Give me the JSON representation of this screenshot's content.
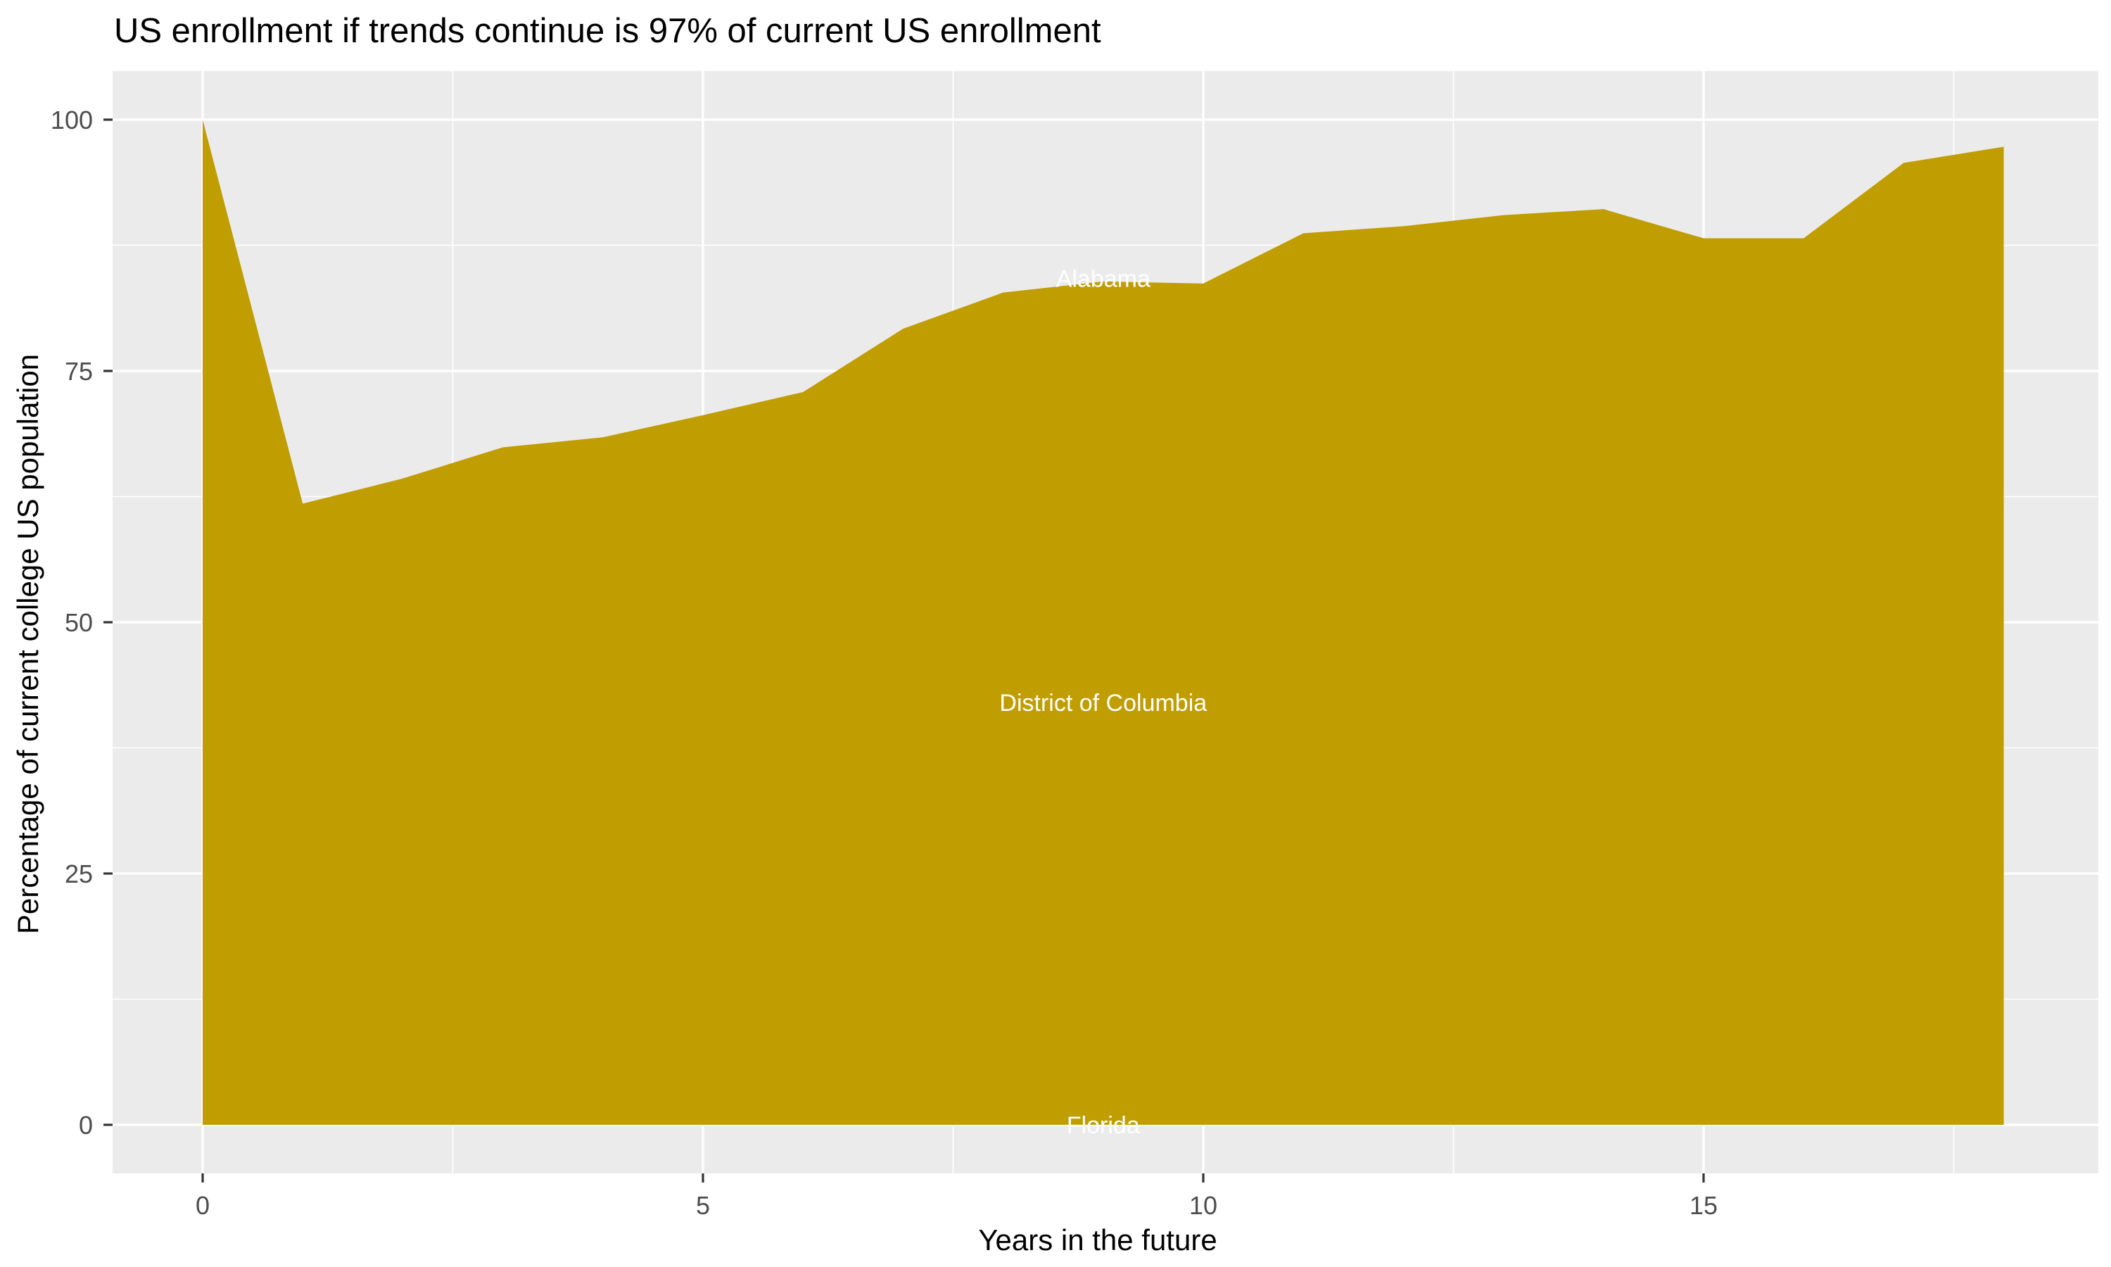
{
  "chart_data": {
    "type": "area",
    "title": "US enrollment if trends continue is 97% of current US enrollment",
    "xlabel": "Years in the future",
    "ylabel": "Percentage of current college US population",
    "x": [
      0,
      1,
      2,
      3,
      4,
      5,
      6,
      7,
      8,
      9,
      10,
      11,
      12,
      13,
      14,
      15,
      16,
      17,
      18
    ],
    "values": [
      100,
      61.8,
      64.3,
      67.4,
      68.4,
      70.6,
      72.9,
      79.2,
      82.8,
      83.9,
      83.7,
      88.7,
      89.4,
      90.5,
      91.1,
      88.2,
      88.2,
      95.7,
      97.3
    ],
    "baseline": 0,
    "x_ticks": [
      0,
      5,
      10,
      15
    ],
    "x_tick_labels": [
      "0",
      "5",
      "10",
      "15"
    ],
    "y_ticks": [
      0,
      25,
      50,
      75,
      100
    ],
    "y_tick_labels": [
      "0",
      "25",
      "50",
      "75",
      "100"
    ],
    "x_minor_ticks": [
      2.5,
      7.5,
      12.5,
      17.5
    ],
    "y_minor_ticks": [
      12.5,
      37.5,
      62.5,
      87.5
    ],
    "xlim": [
      -0.9,
      18.95
    ],
    "ylim": [
      -4.8,
      104.8
    ],
    "grid": "on",
    "legend": "none",
    "annotations": [
      {
        "label": "Alabama",
        "x": 9,
        "y": 84.2
      },
      {
        "label": "District of Columbia",
        "x": 9,
        "y": 42
      },
      {
        "label": "Florida",
        "x": 9,
        "y": 0
      }
    ],
    "colors": {
      "area_fill": "#C09D00",
      "panel_background": "#EBEBEB",
      "gridline": "#FFFFFF",
      "tick_mark": "#333333",
      "tick_label": "#4D4D4D",
      "title_text": "#000000",
      "annotation_text": "#FFFFFF",
      "figure_background": "#FFFFFF"
    }
  }
}
